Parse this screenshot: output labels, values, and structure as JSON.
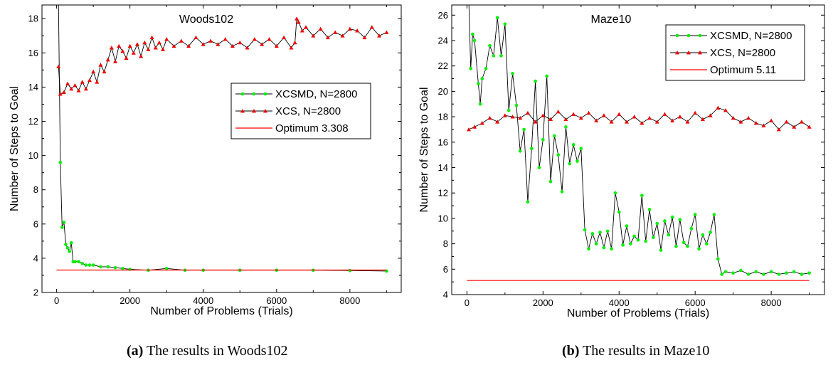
{
  "captions": {
    "a": {
      "tag": "(a)",
      "text": " The results in Woods102"
    },
    "b": {
      "tag": "(b)",
      "text": " The results in Maze10"
    }
  },
  "colors": {
    "xcsmd": "#00ee00",
    "xcs": "#ee0000",
    "optimum": "#ff0000",
    "line": "#000000"
  },
  "chart_data": [
    {
      "type": "line",
      "title": "Woods102",
      "xlabel": "Number of Problems (Trials)",
      "ylabel": "Number of Steps to Goal",
      "xlim": [
        -400,
        9400
      ],
      "ylim": [
        2,
        18.8
      ],
      "xticks": [
        0,
        2000,
        4000,
        6000,
        8000
      ],
      "yticks": [
        2,
        4,
        6,
        8,
        10,
        12,
        14,
        16,
        18
      ],
      "legend_position": "right",
      "series": [
        {
          "name": "XCSMD, N=2800",
          "marker": "circle",
          "color": "#00ee00",
          "points": [
            [
              50,
              19.0
            ],
            [
              100,
              9.6
            ],
            [
              150,
              5.8
            ],
            [
              200,
              6.1
            ],
            [
              250,
              4.8
            ],
            [
              300,
              4.6
            ],
            [
              350,
              4.4
            ],
            [
              400,
              4.9
            ],
            [
              450,
              3.8
            ],
            [
              500,
              3.8
            ],
            [
              600,
              3.8
            ],
            [
              700,
              3.7
            ],
            [
              800,
              3.6
            ],
            [
              900,
              3.6
            ],
            [
              1000,
              3.6
            ],
            [
              1200,
              3.5
            ],
            [
              1400,
              3.5
            ],
            [
              1600,
              3.45
            ],
            [
              1800,
              3.4
            ],
            [
              2000,
              3.35
            ],
            [
              2500,
              3.3
            ],
            [
              3000,
              3.4
            ],
            [
              3500,
              3.3
            ],
            [
              4000,
              3.3
            ],
            [
              5000,
              3.3
            ],
            [
              6000,
              3.3
            ],
            [
              7000,
              3.3
            ],
            [
              8000,
              3.28
            ],
            [
              9000,
              3.25
            ]
          ]
        },
        {
          "name": "XCS, N=2800",
          "marker": "triangle",
          "color": "#ee0000",
          "points": [
            [
              50,
              15.2
            ],
            [
              100,
              13.6
            ],
            [
              200,
              13.7
            ],
            [
              300,
              14.2
            ],
            [
              400,
              13.9
            ],
            [
              500,
              14.1
            ],
            [
              600,
              13.8
            ],
            [
              700,
              14.3
            ],
            [
              800,
              13.9
            ],
            [
              900,
              14.4
            ],
            [
              1000,
              14.9
            ],
            [
              1100,
              14.3
            ],
            [
              1200,
              15.3
            ],
            [
              1300,
              14.9
            ],
            [
              1400,
              15.6
            ],
            [
              1500,
              16.3
            ],
            [
              1600,
              15.5
            ],
            [
              1700,
              16.4
            ],
            [
              1800,
              16.1
            ],
            [
              1900,
              15.7
            ],
            [
              2000,
              16.4
            ],
            [
              2100,
              16.0
            ],
            [
              2200,
              16.5
            ],
            [
              2300,
              15.8
            ],
            [
              2400,
              16.6
            ],
            [
              2500,
              16.2
            ],
            [
              2600,
              16.9
            ],
            [
              2700,
              16.3
            ],
            [
              2800,
              16.6
            ],
            [
              2900,
              16.2
            ],
            [
              3000,
              16.8
            ],
            [
              3200,
              16.4
            ],
            [
              3400,
              16.7
            ],
            [
              3600,
              16.4
            ],
            [
              3800,
              16.9
            ],
            [
              4000,
              16.5
            ],
            [
              4200,
              16.7
            ],
            [
              4400,
              16.5
            ],
            [
              4600,
              16.8
            ],
            [
              4800,
              16.4
            ],
            [
              5000,
              16.6
            ],
            [
              5200,
              16.3
            ],
            [
              5400,
              16.8
            ],
            [
              5600,
              16.5
            ],
            [
              5800,
              16.8
            ],
            [
              6000,
              16.4
            ],
            [
              6200,
              16.9
            ],
            [
              6400,
              16.3
            ],
            [
              6500,
              16.6
            ],
            [
              6550,
              18.0
            ],
            [
              6600,
              17.8
            ],
            [
              6700,
              17.3
            ],
            [
              6800,
              17.5
            ],
            [
              7000,
              17.0
            ],
            [
              7200,
              17.4
            ],
            [
              7400,
              16.9
            ],
            [
              7600,
              17.2
            ],
            [
              7800,
              17.0
            ],
            [
              8000,
              17.4
            ],
            [
              8200,
              17.3
            ],
            [
              8400,
              16.9
            ],
            [
              8600,
              17.5
            ],
            [
              8800,
              17.0
            ],
            [
              9000,
              17.2
            ]
          ]
        },
        {
          "name": "Optimum 3.308",
          "marker": "none",
          "color": "#ff0000",
          "points": [
            [
              0,
              3.308
            ],
            [
              9000,
              3.308
            ]
          ]
        }
      ]
    },
    {
      "type": "line",
      "title": "Maze10",
      "xlabel": "Number of Problems (Trials)",
      "ylabel": "Number of Steps to Goal",
      "xlim": [
        -400,
        9400
      ],
      "ylim": [
        4,
        26.8
      ],
      "xticks": [
        0,
        2000,
        4000,
        6000,
        8000
      ],
      "yticks": [
        4,
        6,
        8,
        10,
        12,
        14,
        16,
        18,
        20,
        22,
        24,
        26
      ],
      "legend_position": "top-right",
      "series": [
        {
          "name": "XCSMD, N=2800",
          "marker": "circle",
          "color": "#00ee00",
          "points": [
            [
              50,
              27.0
            ],
            [
              100,
              21.8
            ],
            [
              150,
              24.5
            ],
            [
              200,
              24.0
            ],
            [
              300,
              20.6
            ],
            [
              350,
              19.0
            ],
            [
              400,
              21.0
            ],
            [
              500,
              21.8
            ],
            [
              600,
              23.6
            ],
            [
              700,
              22.8
            ],
            [
              800,
              25.8
            ],
            [
              900,
              22.8
            ],
            [
              1000,
              25.3
            ],
            [
              1100,
              18.5
            ],
            [
              1200,
              21.4
            ],
            [
              1300,
              18.9
            ],
            [
              1400,
              15.3
            ],
            [
              1500,
              17.0
            ],
            [
              1600,
              11.3
            ],
            [
              1700,
              15.5
            ],
            [
              1800,
              20.8
            ],
            [
              1900,
              14.0
            ],
            [
              2000,
              16.2
            ],
            [
              2100,
              21.2
            ],
            [
              2200,
              12.9
            ],
            [
              2300,
              16.5
            ],
            [
              2400,
              15.0
            ],
            [
              2500,
              12.1
            ],
            [
              2600,
              17.2
            ],
            [
              2700,
              14.3
            ],
            [
              2800,
              15.8
            ],
            [
              2900,
              14.5
            ],
            [
              3000,
              15.5
            ],
            [
              3100,
              9.1
            ],
            [
              3200,
              7.6
            ],
            [
              3300,
              8.8
            ],
            [
              3400,
              8.0
            ],
            [
              3500,
              8.9
            ],
            [
              3600,
              7.7
            ],
            [
              3700,
              9.0
            ],
            [
              3800,
              7.6
            ],
            [
              3900,
              12.0
            ],
            [
              4000,
              10.5
            ],
            [
              4100,
              7.9
            ],
            [
              4200,
              9.4
            ],
            [
              4300,
              8.0
            ],
            [
              4400,
              8.6
            ],
            [
              4500,
              8.3
            ],
            [
              4600,
              11.8
            ],
            [
              4700,
              8.2
            ],
            [
              4800,
              10.7
            ],
            [
              4900,
              8.5
            ],
            [
              5000,
              9.6
            ],
            [
              5100,
              7.5
            ],
            [
              5200,
              9.8
            ],
            [
              5300,
              8.7
            ],
            [
              5400,
              10.1
            ],
            [
              5500,
              7.8
            ],
            [
              5600,
              9.9
            ],
            [
              5700,
              8.1
            ],
            [
              5800,
              7.8
            ],
            [
              5900,
              9.2
            ],
            [
              6000,
              10.3
            ],
            [
              6100,
              7.6
            ],
            [
              6200,
              8.7
            ],
            [
              6300,
              8.0
            ],
            [
              6400,
              8.9
            ],
            [
              6500,
              10.3
            ],
            [
              6600,
              6.8
            ],
            [
              6700,
              5.6
            ],
            [
              6800,
              5.8
            ],
            [
              7000,
              5.7
            ],
            [
              7200,
              5.9
            ],
            [
              7400,
              5.6
            ],
            [
              7600,
              5.8
            ],
            [
              7800,
              5.6
            ],
            [
              8000,
              5.8
            ],
            [
              8200,
              5.6
            ],
            [
              8400,
              5.7
            ],
            [
              8600,
              5.8
            ],
            [
              8800,
              5.6
            ],
            [
              9000,
              5.7
            ]
          ]
        },
        {
          "name": "XCS, N=2800",
          "marker": "triangle",
          "color": "#ee0000",
          "points": [
            [
              50,
              17.0
            ],
            [
              200,
              17.2
            ],
            [
              400,
              17.5
            ],
            [
              600,
              17.9
            ],
            [
              800,
              17.6
            ],
            [
              1000,
              18.1
            ],
            [
              1200,
              18.0
            ],
            [
              1400,
              17.9
            ],
            [
              1600,
              18.3
            ],
            [
              1800,
              17.6
            ],
            [
              2000,
              18.1
            ],
            [
              2200,
              17.8
            ],
            [
              2400,
              18.4
            ],
            [
              2600,
              17.8
            ],
            [
              2800,
              18.2
            ],
            [
              3000,
              17.9
            ],
            [
              3200,
              18.3
            ],
            [
              3400,
              17.7
            ],
            [
              3600,
              18.1
            ],
            [
              3800,
              17.6
            ],
            [
              4000,
              18.2
            ],
            [
              4200,
              17.6
            ],
            [
              4400,
              18.0
            ],
            [
              4600,
              17.5
            ],
            [
              4800,
              17.9
            ],
            [
              5000,
              17.6
            ],
            [
              5200,
              18.2
            ],
            [
              5400,
              17.7
            ],
            [
              5600,
              18.0
            ],
            [
              5800,
              17.6
            ],
            [
              6000,
              18.3
            ],
            [
              6200,
              17.8
            ],
            [
              6400,
              18.1
            ],
            [
              6600,
              18.7
            ],
            [
              6800,
              18.5
            ],
            [
              7000,
              17.9
            ],
            [
              7200,
              17.6
            ],
            [
              7400,
              17.9
            ],
            [
              7600,
              17.5
            ],
            [
              7800,
              17.3
            ],
            [
              8000,
              17.7
            ],
            [
              8200,
              17.0
            ],
            [
              8400,
              17.6
            ],
            [
              8600,
              17.2
            ],
            [
              8800,
              17.6
            ],
            [
              9000,
              17.2
            ]
          ]
        },
        {
          "name": "Optimum 5.11",
          "marker": "none",
          "color": "#ff0000",
          "points": [
            [
              0,
              5.11
            ],
            [
              9000,
              5.11
            ]
          ]
        }
      ]
    }
  ]
}
